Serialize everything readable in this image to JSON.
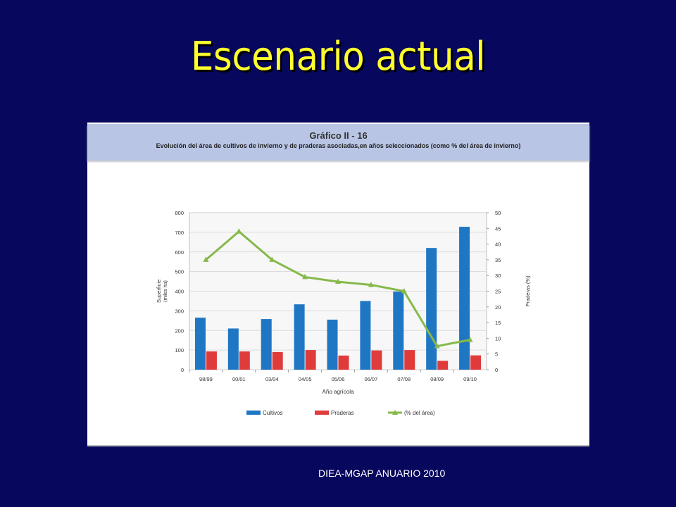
{
  "slide": {
    "title": "Escenario actual",
    "source": "DIEA-MGAP ANUARIO 2010"
  },
  "colors": {
    "background": "#07075e",
    "title": "#ffff2e",
    "header_band": "#b9c5e4",
    "cultivos": "#1f77c4",
    "praderas": "#e03b3b",
    "pct_line": "#86b94a"
  },
  "chart_data": {
    "type": "bar",
    "figure_number": "Gráfico II - 16",
    "title": "Evolución del área de cultivos de invierno y de praderas asociadas,en años seleccionados (como % del área de invierno)",
    "xlabel": "Año agrícola",
    "ylabel": "Superficie",
    "ylabel_sub": "(miles ha)",
    "y2label": "Praderas (%)",
    "categories": [
      "98/99",
      "00/01",
      "03/04",
      "04/05",
      "05/06",
      "06/07",
      "07/08",
      "08/09",
      "09/10"
    ],
    "ylim": [
      0,
      800
    ],
    "yticks": [
      0,
      100,
      200,
      300,
      400,
      500,
      600,
      700,
      800
    ],
    "y2lim": [
      0,
      50
    ],
    "y2ticks": [
      0,
      5,
      10,
      15,
      20,
      25,
      30,
      35,
      40,
      45,
      50
    ],
    "grid": true,
    "legend_position": "bottom",
    "series": [
      {
        "name": "Cultivos",
        "kind": "bar",
        "axis": "left",
        "values": [
          265,
          210,
          258,
          333,
          255,
          350,
          398,
          620,
          728
        ]
      },
      {
        "name": "Praderas",
        "kind": "bar",
        "axis": "left",
        "values": [
          93,
          93,
          90,
          100,
          72,
          98,
          100,
          45,
          73
        ]
      },
      {
        "name": "(% del área)",
        "kind": "line",
        "axis": "right",
        "values": [
          35,
          44,
          35,
          29.5,
          28,
          27,
          25,
          7.5,
          9.5
        ]
      }
    ]
  }
}
